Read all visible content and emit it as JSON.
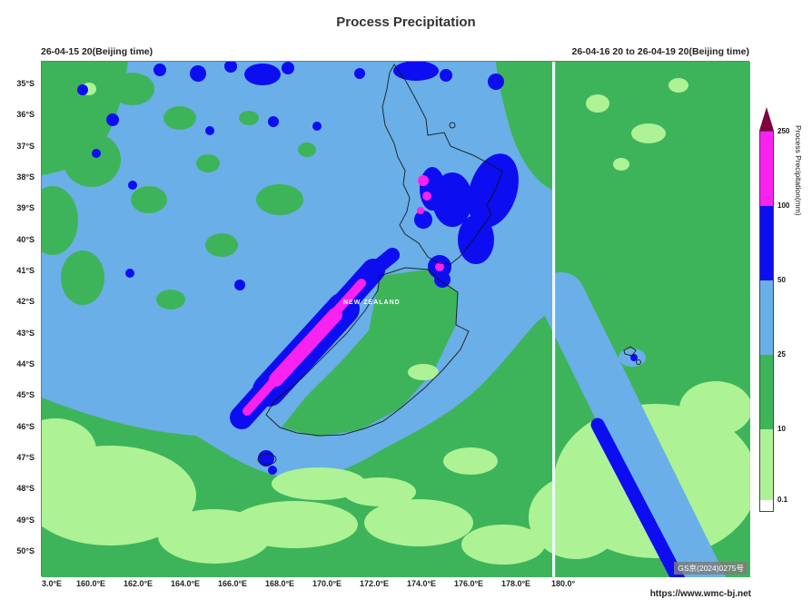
{
  "header": {
    "title": "Process Precipitation",
    "init_time": "26-04-15 20(Beijing time)",
    "valid_period": "26-04-16 20 to 26-04-19 20(Beijing time)"
  },
  "map": {
    "label": "NEW ZEALAND",
    "license": "GS京(2024)0275号"
  },
  "axes": {
    "lat_ticks": [
      "35°S",
      "36°S",
      "37°S",
      "38°S",
      "39°S",
      "40°S",
      "41°S",
      "42°S",
      "43°S",
      "44°S",
      "45°S",
      "46°S",
      "47°S",
      "48°S",
      "49°S",
      "50°S"
    ],
    "lon_ticks": [
      "3.0°E",
      "160.0°E",
      "162.0°E",
      "164.0°E",
      "166.0°E",
      "168.0°E",
      "170.0°E",
      "172.0°E",
      "174.0°E",
      "176.0°E",
      "178.0°E",
      "180.0°"
    ]
  },
  "colorbar": {
    "label": "Process Precipitation(mm)",
    "tick_labels": [
      "250",
      "100",
      "50",
      "25",
      "10",
      "0.1"
    ],
    "segments_top_to_bottom": [
      {
        "name": "gt-250",
        "color": "#800040"
      },
      {
        "name": "100-250",
        "color": "#fa22f0"
      },
      {
        "name": "50-100",
        "color": "#0d0df2"
      },
      {
        "name": "25-50",
        "color": "#6aafe8"
      },
      {
        "name": "10-25",
        "color": "#3eb45a"
      },
      {
        "name": "0.1-10",
        "color": "#aef296"
      },
      {
        "name": "lt-0.1",
        "color": "#ffffff"
      }
    ]
  },
  "footer": {
    "url": "https://www.wmc-bj.net"
  },
  "chart_data": {
    "type": "heatmap",
    "title": "Process Precipitation",
    "variable": "Process Precipitation(mm)",
    "init_time": "26-04-15 20(Beijing time)",
    "valid_period": "26-04-16 20 to 26-04-19 20(Beijing time)",
    "region": "New Zealand and surrounding ocean",
    "x_ticks": [
      "3.0°E",
      "160.0°E",
      "162.0°E",
      "164.0°E",
      "166.0°E",
      "168.0°E",
      "170.0°E",
      "172.0°E",
      "174.0°E",
      "176.0°E",
      "178.0°E",
      "180.0°"
    ],
    "y_ticks": [
      "35°S",
      "36°S",
      "37°S",
      "38°S",
      "39°S",
      "40°S",
      "41°S",
      "42°S",
      "43°S",
      "44°S",
      "45°S",
      "46°S",
      "47°S",
      "48°S",
      "49°S",
      "50°S"
    ],
    "levels_mm": [
      0.1,
      10,
      25,
      50,
      100,
      250
    ],
    "level_colors": [
      "#ffffff",
      "#aef296",
      "#3eb45a",
      "#6aafe8",
      "#0d0df2",
      "#fa22f0",
      "#800040"
    ],
    "legend_position": "right",
    "annotations": [
      "NEW ZEALAND",
      "vertical white dateline at 180.0°"
    ],
    "features": [
      "Narrow 100-250 mm band along the west coast of the South Island (Southern Alps) surrounded by 50-100 mm",
      "50-100 mm area with embedded 100-250 mm cells over the eastern North Island",
      "Widespread 25-50 mm over the Tasman Sea west and north of New Zealand with scattered 50-100 mm cells",
      "50-100 mm diagonal streak in the southeast corner of the domain inside a 25-50 mm band",
      "East of 180° mostly 10-25 mm with patches of 0.1-10 mm",
      "0.1-10 mm patches in the southwest corner and south of the South Island"
    ]
  }
}
